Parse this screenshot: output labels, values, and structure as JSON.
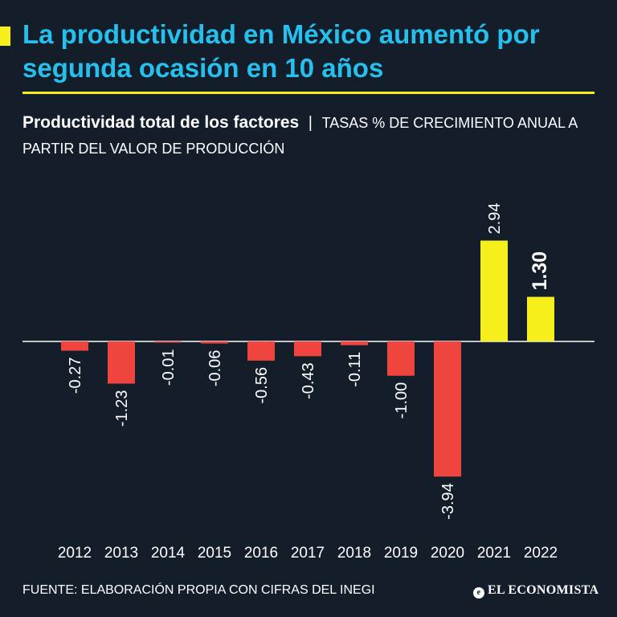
{
  "header": {
    "title": "La productividad en México aumentó por segunda ocasión en 10 años",
    "subtitle_main": "Productividad total de los factores",
    "subtitle_sep": "|",
    "subtitle_detail": "TASAS % DE CRECIMIENTO ANUAL A PARTIR DEL VALOR DE PRODUCCIÓN"
  },
  "footer": {
    "source": "FUENTE: ELABORACIÓN PROPIA CON CIFRAS DEL INEGI",
    "logo_text": "EL ECONOMISTA",
    "logo_mark": "e"
  },
  "colors": {
    "background": "#141d2a",
    "title": "#25c0ee",
    "accent": "#f6ef1b",
    "negative": "#f0453f",
    "positive": "#f6ef1b",
    "text": "#ffffff"
  },
  "chart_data": {
    "type": "bar",
    "title": "Productividad total de los factores",
    "ylabel": "Tasas % de crecimiento anual",
    "categories": [
      "2012",
      "2013",
      "2014",
      "2015",
      "2016",
      "2017",
      "2018",
      "2019",
      "2020",
      "2021",
      "2022"
    ],
    "values": [
      -0.27,
      -1.23,
      -0.01,
      -0.06,
      -0.56,
      -0.43,
      -0.11,
      -1.0,
      -3.94,
      2.94,
      1.3
    ],
    "labels": [
      "-0.27",
      "-1.23",
      "-0.01",
      "-0.06",
      "-0.56",
      "-0.43",
      "-0.11",
      "-1.00",
      "-3.94",
      "2.94",
      "1.30"
    ],
    "ylim": [
      -3.94,
      2.94
    ],
    "highlight": "2022",
    "grid": false
  }
}
